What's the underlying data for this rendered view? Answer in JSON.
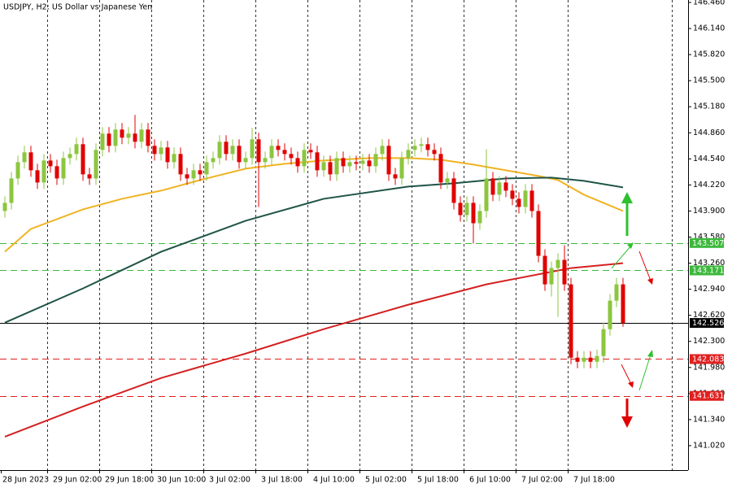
{
  "chart_data": {
    "type": "candlestick",
    "title": "USDJPY, H2:  US Dollar vs Japanese Yen",
    "categories": [
      "28 Jun 2023",
      null,
      null,
      null,
      null,
      null,
      null,
      null,
      "29 Jun 02:00",
      null,
      null,
      null,
      null,
      null,
      null,
      null,
      "29 Jun 18:00",
      null,
      null,
      null,
      null,
      null,
      null,
      null,
      "30 Jun 10:00",
      null,
      null,
      null,
      null,
      null,
      null,
      null,
      "3 Jul 02:00",
      null,
      null,
      null,
      null,
      null,
      null,
      null,
      "3 Jul 18:00",
      null,
      null,
      null,
      null,
      null,
      null,
      null,
      "4 Jul 10:00",
      null,
      null,
      null,
      null,
      null,
      null,
      null,
      "5 Jul 02:00",
      null,
      null,
      null,
      null,
      null,
      null,
      null,
      "5 Jul 18:00",
      null,
      null,
      null,
      null,
      null,
      null,
      null,
      "6 Jul 10:00",
      null,
      null,
      null,
      null,
      null,
      null,
      null,
      "7 Jul 02:00",
      null,
      null,
      null,
      null,
      null,
      null,
      null,
      "7 Jul 18:00",
      null,
      null,
      null,
      null,
      null,
      null,
      null
    ],
    "ohlc": [
      [
        143.9,
        144.08,
        143.82,
        144.0
      ],
      [
        144.0,
        144.38,
        143.92,
        144.3
      ],
      [
        144.3,
        144.58,
        144.22,
        144.5
      ],
      [
        144.5,
        144.7,
        144.42,
        144.62
      ],
      [
        144.62,
        144.7,
        144.32,
        144.4
      ],
      [
        144.4,
        144.48,
        144.17,
        144.25
      ],
      [
        144.25,
        144.6,
        144.17,
        144.52
      ],
      [
        144.52,
        144.6,
        144.37,
        144.45
      ],
      [
        144.45,
        144.53,
        144.22,
        144.3
      ],
      [
        144.3,
        144.63,
        144.22,
        144.55
      ],
      [
        144.55,
        144.68,
        144.47,
        144.6
      ],
      [
        144.6,
        144.8,
        144.52,
        144.72
      ],
      [
        144.72,
        144.8,
        144.27,
        144.35
      ],
      [
        144.35,
        144.43,
        144.22,
        144.3
      ],
      [
        144.3,
        144.73,
        144.22,
        144.65
      ],
      [
        144.65,
        144.93,
        144.57,
        144.85
      ],
      [
        144.85,
        144.93,
        144.62,
        144.7
      ],
      [
        144.7,
        144.98,
        144.62,
        144.9
      ],
      [
        144.9,
        144.98,
        144.72,
        144.8
      ],
      [
        144.8,
        144.93,
        144.72,
        144.85
      ],
      [
        144.85,
        145.08,
        144.67,
        144.75
      ],
      [
        144.75,
        144.98,
        144.67,
        144.9
      ],
      [
        144.9,
        144.98,
        144.62,
        144.7
      ],
      [
        144.7,
        144.78,
        144.52,
        144.6
      ],
      [
        144.6,
        144.76,
        144.52,
        144.68
      ],
      [
        144.68,
        144.76,
        144.42,
        144.5
      ],
      [
        144.5,
        144.68,
        144.42,
        144.6
      ],
      [
        144.6,
        144.68,
        144.27,
        144.35
      ],
      [
        144.35,
        144.43,
        144.22,
        144.3
      ],
      [
        144.3,
        144.48,
        144.22,
        144.4
      ],
      [
        144.4,
        144.48,
        144.27,
        144.35
      ],
      [
        144.35,
        144.58,
        144.27,
        144.5
      ],
      [
        144.5,
        144.63,
        144.42,
        144.55
      ],
      [
        144.55,
        144.83,
        144.47,
        144.75
      ],
      [
        144.75,
        144.83,
        144.52,
        144.6
      ],
      [
        144.6,
        144.78,
        144.52,
        144.7
      ],
      [
        144.7,
        144.78,
        144.42,
        144.5
      ],
      [
        144.5,
        144.63,
        144.42,
        144.55
      ],
      [
        144.55,
        144.92,
        144.47,
        144.78
      ],
      [
        144.78,
        144.86,
        143.95,
        144.5
      ],
      [
        144.5,
        144.63,
        144.42,
        144.55
      ],
      [
        144.55,
        144.78,
        144.47,
        144.7
      ],
      [
        144.7,
        144.78,
        144.57,
        144.65
      ],
      [
        144.65,
        144.73,
        144.52,
        144.6
      ],
      [
        144.6,
        144.68,
        144.47,
        144.55
      ],
      [
        144.55,
        144.63,
        144.37,
        144.45
      ],
      [
        144.45,
        144.73,
        144.37,
        144.65
      ],
      [
        144.65,
        144.73,
        144.54,
        144.62
      ],
      [
        144.62,
        144.7,
        144.32,
        144.4
      ],
      [
        144.4,
        144.58,
        144.32,
        144.5
      ],
      [
        144.5,
        144.58,
        144.27,
        144.35
      ],
      [
        144.35,
        144.63,
        144.27,
        144.55
      ],
      [
        144.55,
        144.63,
        144.37,
        144.45
      ],
      [
        144.45,
        144.58,
        144.37,
        144.5
      ],
      [
        144.5,
        144.58,
        144.4,
        144.48
      ],
      [
        144.48,
        144.6,
        144.4,
        144.52
      ],
      [
        144.52,
        144.6,
        144.37,
        144.45
      ],
      [
        144.45,
        144.68,
        144.37,
        144.6
      ],
      [
        144.6,
        144.78,
        144.52,
        144.7
      ],
      [
        144.7,
        144.78,
        144.27,
        144.35
      ],
      [
        144.35,
        144.43,
        144.22,
        144.3
      ],
      [
        144.3,
        144.63,
        144.22,
        144.55
      ],
      [
        144.55,
        144.73,
        144.47,
        144.65
      ],
      [
        144.65,
        144.78,
        144.57,
        144.7
      ],
      [
        144.7,
        144.8,
        144.62,
        144.72
      ],
      [
        144.72,
        144.8,
        144.57,
        144.65
      ],
      [
        144.65,
        144.73,
        144.52,
        144.6
      ],
      [
        144.6,
        144.68,
        144.17,
        144.25
      ],
      [
        144.25,
        144.38,
        144.17,
        144.3
      ],
      [
        144.3,
        144.38,
        143.92,
        144.0
      ],
      [
        144.0,
        144.08,
        143.77,
        143.85
      ],
      [
        143.85,
        144.08,
        143.77,
        144.0
      ],
      [
        144.0,
        144.08,
        143.5,
        143.75
      ],
      [
        143.75,
        143.98,
        143.67,
        143.9
      ],
      [
        143.9,
        144.66,
        143.82,
        144.3
      ],
      [
        144.3,
        144.38,
        144.02,
        144.1
      ],
      [
        144.1,
        144.33,
        144.02,
        144.25
      ],
      [
        144.25,
        144.33,
        144.07,
        144.15
      ],
      [
        144.15,
        144.23,
        143.97,
        144.05
      ],
      [
        144.05,
        144.13,
        143.87,
        143.95
      ],
      [
        143.95,
        144.23,
        143.87,
        144.15
      ],
      [
        144.15,
        144.23,
        143.82,
        143.9
      ],
      [
        143.9,
        143.98,
        143.27,
        143.35
      ],
      [
        143.35,
        143.43,
        142.92,
        143.0
      ],
      [
        143.0,
        143.28,
        142.85,
        143.2
      ],
      [
        143.2,
        143.38,
        142.6,
        143.3
      ],
      [
        143.3,
        143.48,
        142.92,
        143.0
      ],
      [
        143.0,
        143.08,
        142.02,
        142.1
      ],
      [
        142.1,
        142.18,
        141.97,
        142.05
      ],
      [
        142.05,
        142.18,
        141.97,
        142.1
      ],
      [
        142.1,
        142.18,
        141.97,
        142.05
      ],
      [
        142.05,
        142.2,
        141.97,
        142.12
      ],
      [
        142.12,
        142.53,
        142.04,
        142.45
      ],
      [
        142.45,
        142.88,
        142.37,
        142.8
      ],
      [
        142.8,
        143.08,
        142.72,
        143.0
      ],
      [
        143.0,
        143.08,
        142.48,
        142.526
      ]
    ],
    "up_color": "#8cc63f",
    "down_color": "#e00000",
    "series": [
      {
        "color": "#f0b323",
        "x": [
          0,
          4,
          12,
          18,
          24,
          30,
          37,
          43,
          49,
          56,
          62,
          67,
          72,
          77,
          82,
          85,
          89,
          95
        ],
        "values": [
          143.4,
          143.68,
          143.92,
          144.05,
          144.15,
          144.28,
          144.42,
          144.48,
          144.52,
          144.55,
          144.55,
          144.53,
          144.47,
          144.4,
          144.33,
          144.28,
          144.1,
          143.9
        ]
      },
      {
        "color": "#1e5446",
        "x": [
          0,
          12,
          24,
          37,
          49,
          62,
          69,
          77,
          84,
          89,
          95
        ],
        "values": [
          142.53,
          142.95,
          143.4,
          143.78,
          144.05,
          144.2,
          144.24,
          144.3,
          144.31,
          144.27,
          144.19
        ]
      },
      {
        "color": "#d42020",
        "x": [
          0,
          12,
          24,
          37,
          49,
          62,
          74,
          87,
          95
        ],
        "values": [
          141.13,
          141.5,
          141.85,
          142.15,
          142.45,
          142.75,
          143.0,
          143.2,
          143.26
        ]
      }
    ],
    "levels": [
      {
        "value": 143.507,
        "color": "#3cb83c",
        "dashed": true
      },
      {
        "value": 143.171,
        "color": "#3cb83c",
        "dashed": true
      },
      {
        "value": 142.526,
        "color": "#000000",
        "dashed": false
      },
      {
        "value": 142.083,
        "color": "#e02020",
        "dashed": true
      },
      {
        "value": 141.631,
        "color": "#e02020",
        "dashed": true
      }
    ],
    "ylim": [
      140.72,
      146.49
    ],
    "yticks": [
      {
        "value": 146.46,
        "label": "146.460"
      },
      {
        "value": 146.14,
        "label": "146.140"
      },
      {
        "value": 145.82,
        "label": "145.820"
      },
      {
        "value": 145.5,
        "label": "145.500"
      },
      {
        "value": 145.18,
        "label": "145.180"
      },
      {
        "value": 144.86,
        "label": "144.860"
      },
      {
        "value": 144.54,
        "label": "144.540"
      },
      {
        "value": 144.22,
        "label": "144.220"
      },
      {
        "value": 143.9,
        "label": "143.900"
      },
      {
        "value": 143.58,
        "label": "143.580"
      },
      {
        "value": 143.26,
        "label": "143.260"
      },
      {
        "value": 142.94,
        "label": "142.940"
      },
      {
        "value": 142.62,
        "label": "142.620"
      },
      {
        "value": 142.3,
        "label": "142.300"
      },
      {
        "value": 141.98,
        "label": "141.980"
      },
      {
        "value": 141.66,
        "label": "141.660"
      },
      {
        "value": 141.34,
        "label": "141.340"
      },
      {
        "value": 141.02,
        "label": "141.020"
      }
    ],
    "grid": true
  }
}
